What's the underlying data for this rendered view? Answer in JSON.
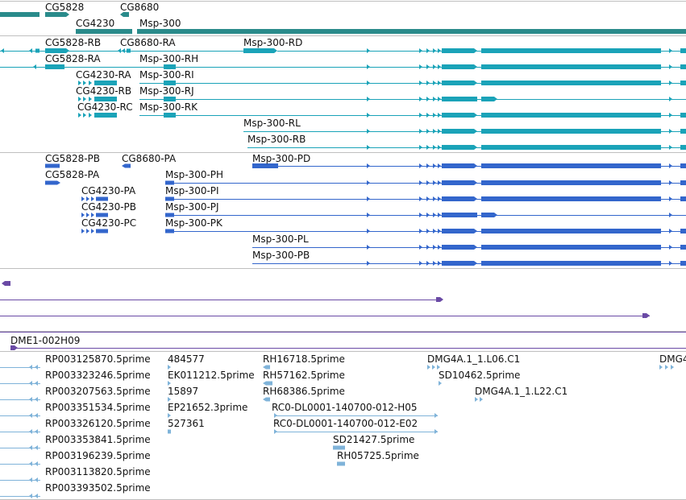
{
  "colors": {
    "gene": "#2a8b8b",
    "rna": "#1aa3b8",
    "protein": "#3366cc",
    "purple": "#6a4aa5",
    "est": "#7fb3d9",
    "divider": "#bfbfbf",
    "line": "#000000"
  },
  "genes": {
    "cg5828": "CG5828",
    "cg8680": "CG8680",
    "cg4230": "CG4230",
    "msp300": "Msp-300"
  },
  "transcripts": {
    "cg5828_rb": "CG5828-RB",
    "cg8680_ra": "CG8680-RA",
    "msp300_rd": "Msp-300-RD",
    "cg5828_ra": "CG5828-RA",
    "msp300_rh": "Msp-300-RH",
    "cg4230_ra": "CG4230-RA",
    "msp300_ri": "Msp-300-RI",
    "cg4230_rb": "CG4230-RB",
    "msp300_rj": "Msp-300-RJ",
    "cg4230_rc": "CG4230-RC",
    "msp300_rk": "Msp-300-RK",
    "msp300_rl": "Msp-300-RL",
    "msp300_rb": "Msp-300-RB"
  },
  "proteins": {
    "cg5828_pb": "CG5828-PB",
    "cg8680_pa": "CG8680-PA",
    "msp300_pd": "Msp-300-PD",
    "cg5828_pa": "CG5828-PA",
    "msp300_ph": "Msp-300-PH",
    "cg4230_pa": "CG4230-PA",
    "msp300_pi": "Msp-300-PI",
    "cg4230_pb": "CG4230-PB",
    "msp300_pj": "Msp-300-PJ",
    "cg4230_pc": "CG4230-PC",
    "msp300_pk": "Msp-300-PK",
    "msp300_pl": "Msp-300-PL",
    "msp300_pb": "Msp-300-PB"
  },
  "clone": "DME1-002H09",
  "ests": {
    "rp1": "RP003125870.5prime",
    "rp2": "RP003323246.5prime",
    "rp3": "RP003207563.5prime",
    "rp4": "RP003351534.5prime",
    "rp5": "RP003326120.5prime",
    "rp6": "RP003353841.5prime",
    "rp7": "RP003196239.5prime",
    "rp8": "RP003113820.5prime",
    "rp9": "RP003393502.5prime",
    "n1": "484577",
    "n2": "EK011212.5prime",
    "n3": "15897",
    "n4": "EP21652.3prime",
    "n5": "527361",
    "rh1": "RH16718.5prime",
    "rh2": "RH57162.5prime",
    "rh3": "RH68386.5prime",
    "rc1": "RC0-DL0001-140700-012-H05",
    "rc2": "RC0-DL0001-140700-012-E02",
    "sd1": "SD21427.5prime",
    "rh4": "RH05725.5prime",
    "dmg1": "DMG4A.1_1.L06.C1",
    "sd2": "SD10462.5prime",
    "dmg2": "DMG4A.1_1.L22.C1",
    "dmg3": "DMG4"
  }
}
